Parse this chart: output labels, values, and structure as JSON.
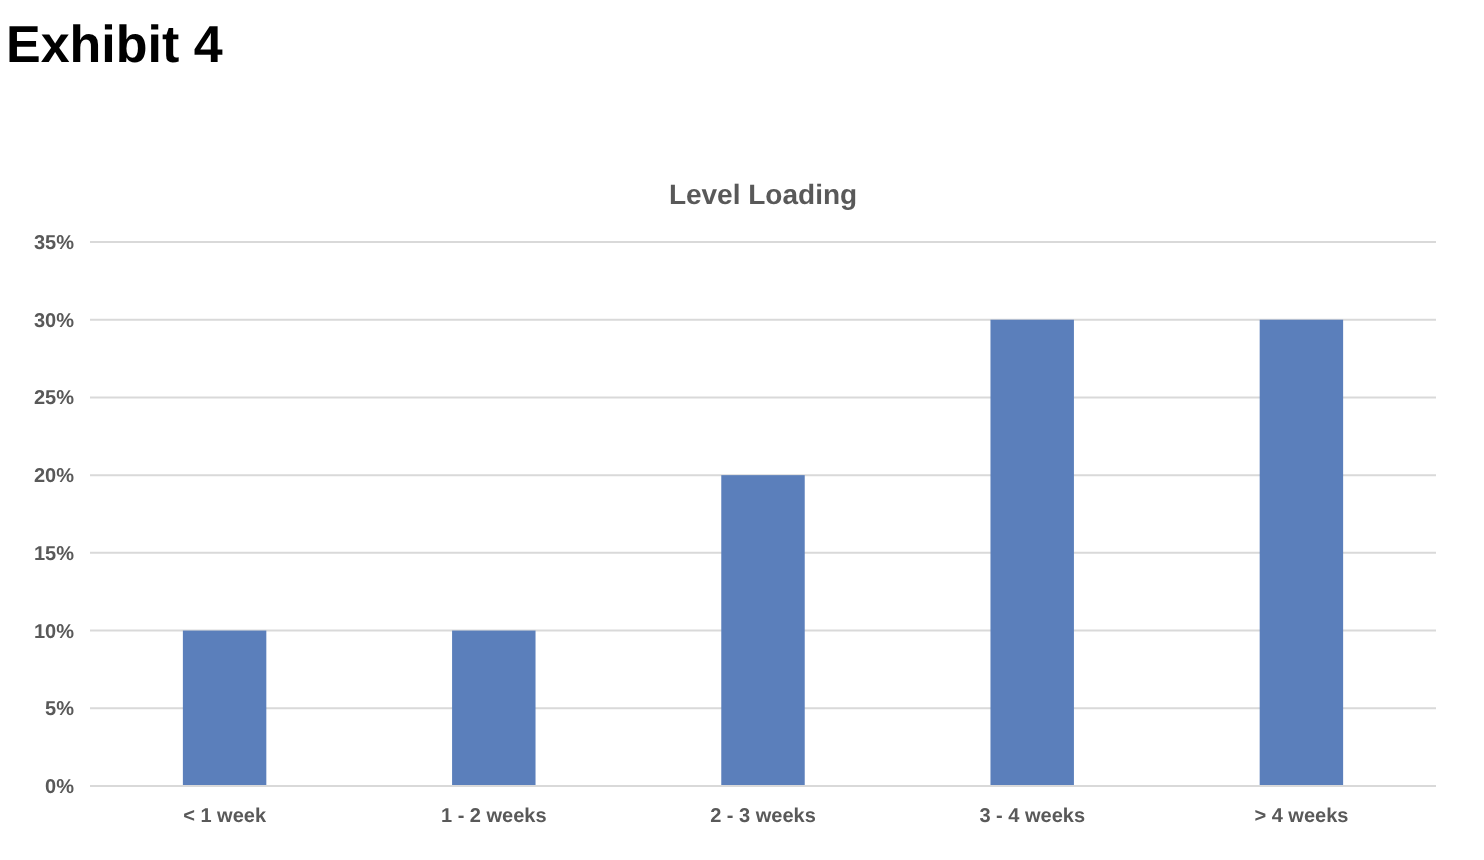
{
  "chart_data": {
    "type": "bar",
    "title": "Exhibit 4",
    "subtitle": "Level Loading",
    "categories": [
      "< 1 week",
      "1 - 2 weeks",
      "2 - 3 weeks",
      "3 - 4 weeks",
      "> 4 weeks"
    ],
    "values": [
      10,
      10,
      20,
      30,
      30
    ],
    "color": "#5b7fbb",
    "ylim": [
      0,
      35
    ],
    "yticks": [
      {
        "value": 0,
        "label": "0%"
      },
      {
        "value": 5,
        "label": "5%"
      },
      {
        "value": 10,
        "label": "10%"
      },
      {
        "value": 15,
        "label": "15%"
      },
      {
        "value": 20,
        "label": "20%"
      },
      {
        "value": 25,
        "label": "25%"
      },
      {
        "value": 30,
        "label": "30%"
      },
      {
        "value": 35,
        "label": "35%"
      }
    ],
    "grid": true
  }
}
